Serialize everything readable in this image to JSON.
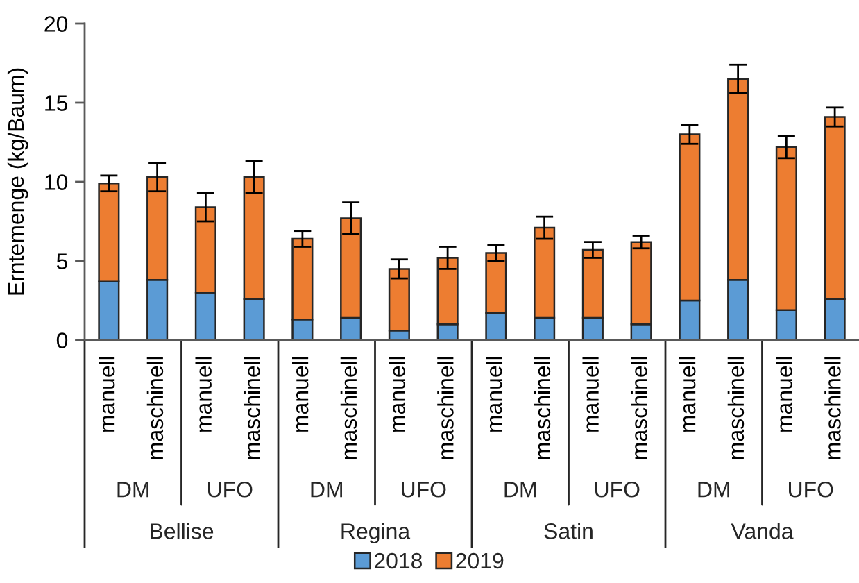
{
  "chart_data": {
    "type": "bar",
    "stacked": true,
    "categories": [
      "manuell",
      "maschinell",
      "manuell",
      "maschinell",
      "manuell",
      "maschinell",
      "manuell",
      "maschinell",
      "manuell",
      "maschinell",
      "manuell",
      "maschinell",
      "manuell",
      "maschinell",
      "manuell",
      "maschinell"
    ],
    "series": [
      {
        "name": "2018",
        "color": "#5b9bd5",
        "values": [
          3.7,
          3.8,
          3.0,
          2.6,
          1.3,
          1.4,
          0.6,
          1.0,
          1.7,
          1.4,
          1.4,
          1.0,
          2.5,
          3.8,
          1.9,
          2.6
        ]
      },
      {
        "name": "2019",
        "color": "#ed7d31",
        "values": [
          6.2,
          6.5,
          5.4,
          7.7,
          5.1,
          6.3,
          3.9,
          4.2,
          3.8,
          5.7,
          4.3,
          5.2,
          10.5,
          12.7,
          10.3,
          11.5
        ],
        "errors": [
          0.5,
          0.9,
          0.9,
          1.0,
          0.5,
          1.0,
          0.6,
          0.7,
          0.5,
          0.7,
          0.5,
          0.4,
          0.6,
          0.9,
          0.7,
          0.6
        ]
      }
    ],
    "ylim": [
      0,
      20
    ],
    "yticks": [
      0,
      5,
      10,
      15,
      20
    ],
    "ylabel": "Erntemenge (kg/Baum)",
    "legend": "bottom",
    "annotations": [
      "DM",
      "UFO",
      "DM",
      "UFO",
      "DM",
      "UFO",
      "DM",
      "UFO",
      "Bellise",
      "Regina",
      "Satin",
      "Vanda"
    ]
  }
}
